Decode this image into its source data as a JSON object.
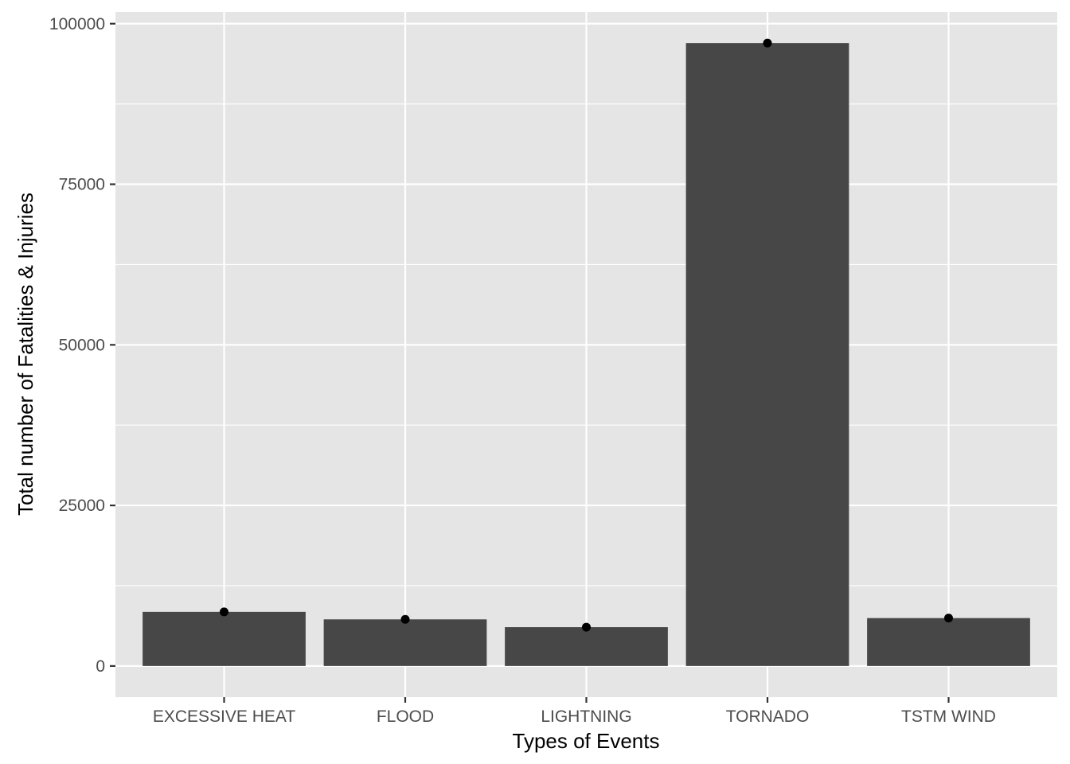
{
  "chart_data": {
    "type": "bar",
    "categories": [
      "EXCESSIVE HEAT",
      "FLOOD",
      "LIGHTNING",
      "TORNADO",
      "TSTM WIND"
    ],
    "values": [
      8428,
      7259,
      6046,
      96979,
      7461
    ],
    "xlabel": "Types of Events",
    "ylabel": "Total number of Fatalities & Injuries",
    "ylim": [
      -4849,
      101828
    ],
    "yticks": [
      0,
      25000,
      50000,
      75000,
      100000
    ],
    "grid": true,
    "point_markers": true,
    "colors": {
      "panel": "#e5e5e5",
      "bar": "#474747",
      "grid": "#ffffff",
      "point": "#000000",
      "tick": "#333333"
    }
  }
}
